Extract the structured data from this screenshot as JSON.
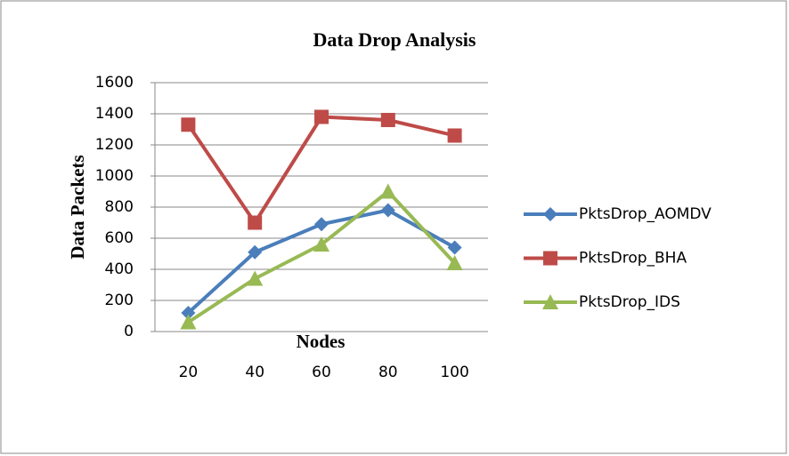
{
  "chart_data": {
    "type": "line",
    "title": "Data Drop Analysis",
    "x_label": "Nodes",
    "y_label": "Data Packets",
    "categories": [
      "20",
      "40",
      "60",
      "80",
      "100"
    ],
    "series": [
      {
        "name": "PktsDrop_AOMDV",
        "color": "#4a7ebb",
        "marker": "diamond",
        "values": [
          120,
          510,
          690,
          780,
          540
        ]
      },
      {
        "name": "PktsDrop_BHA",
        "color": "#be4b48",
        "marker": "square",
        "values": [
          1330,
          700,
          1380,
          1360,
          1260
        ]
      },
      {
        "name": "PktsDrop_IDS",
        "color": "#98b954",
        "marker": "triangle",
        "values": [
          60,
          340,
          560,
          900,
          440
        ]
      }
    ],
    "ylim": [
      0,
      1600
    ],
    "yticks": [
      0,
      200,
      400,
      600,
      800,
      1000,
      1200,
      1400,
      1600
    ],
    "grid": true,
    "legend": "right"
  }
}
